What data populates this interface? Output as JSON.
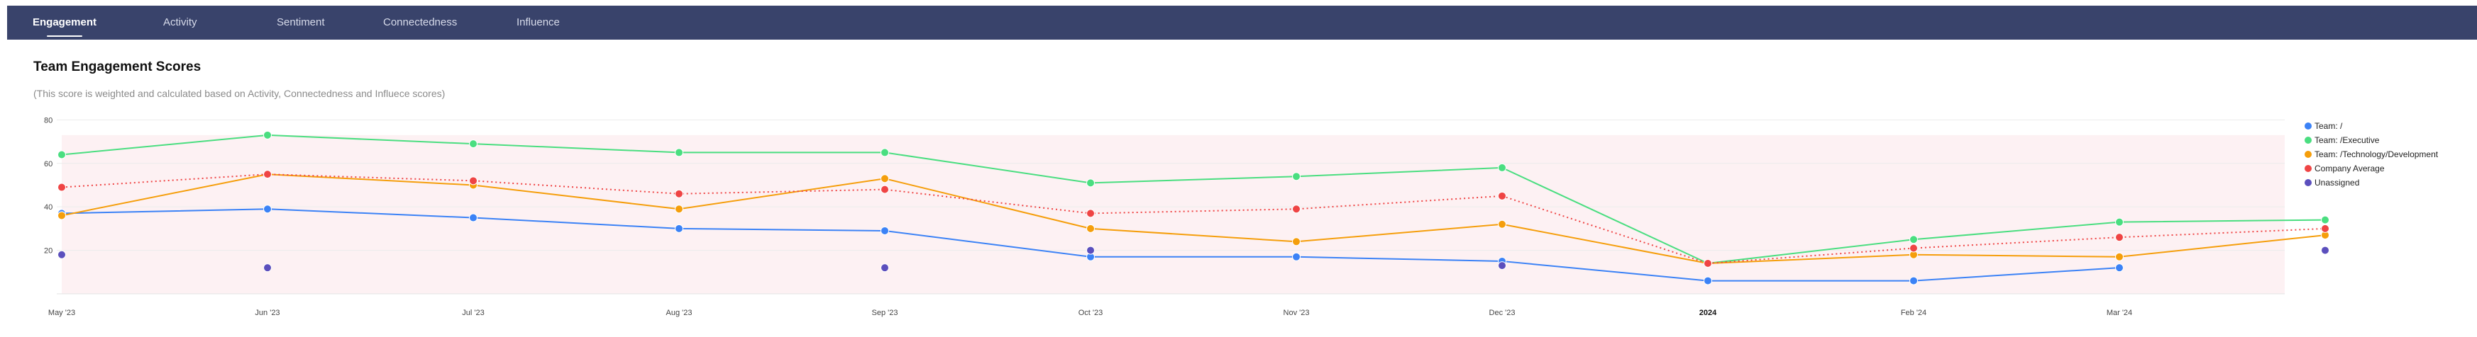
{
  "nav": {
    "tabs": [
      {
        "label": "Engagement",
        "active": true
      },
      {
        "label": "Activity",
        "active": false
      },
      {
        "label": "Sentiment",
        "active": false
      },
      {
        "label": "Connectedness",
        "active": false
      },
      {
        "label": "Influence",
        "active": false
      }
    ]
  },
  "header": {
    "title": "Team Engagement Scores",
    "subtitle": "(This score is weighted and calculated based on Activity, Connectedness and Influece scores)"
  },
  "chart_data": {
    "type": "line",
    "categories": [
      "May '23",
      "Jun '23",
      "Jul '23",
      "Aug '23",
      "Sep '23",
      "Oct '23",
      "Nov '23",
      "Dec '23",
      "2024",
      "Feb '24",
      "Mar '24",
      ""
    ],
    "bold_categories": [
      "2024"
    ],
    "yticks": [
      20,
      40,
      60,
      80
    ],
    "ylim": [
      0,
      85
    ],
    "grid": true,
    "legend_position": "right",
    "series": [
      {
        "name": "Team: /",
        "color": "#3b82f6",
        "style": "solid",
        "values": [
          37,
          39,
          35,
          30,
          29,
          17,
          17,
          15,
          6,
          6,
          12,
          null
        ]
      },
      {
        "name": "Team: /Executive",
        "color": "#4ade80",
        "style": "solid",
        "values": [
          64,
          73,
          69,
          65,
          65,
          51,
          54,
          58,
          14,
          25,
          33,
          34
        ]
      },
      {
        "name": "Team: /Technology/Development",
        "color": "#f59e0b",
        "style": "solid",
        "values": [
          36,
          55,
          50,
          39,
          53,
          30,
          24,
          32,
          14,
          18,
          17,
          27
        ]
      },
      {
        "name": "Company Average",
        "color": "#ef4444",
        "style": "dotted",
        "values": [
          49,
          55,
          52,
          46,
          48,
          37,
          39,
          45,
          14,
          21,
          26,
          30
        ]
      },
      {
        "name": "Unassigned",
        "color": "#5b4fbd",
        "style": "points",
        "values": [
          18,
          12,
          null,
          null,
          12,
          20,
          null,
          13,
          null,
          null,
          null,
          20
        ]
      }
    ]
  }
}
